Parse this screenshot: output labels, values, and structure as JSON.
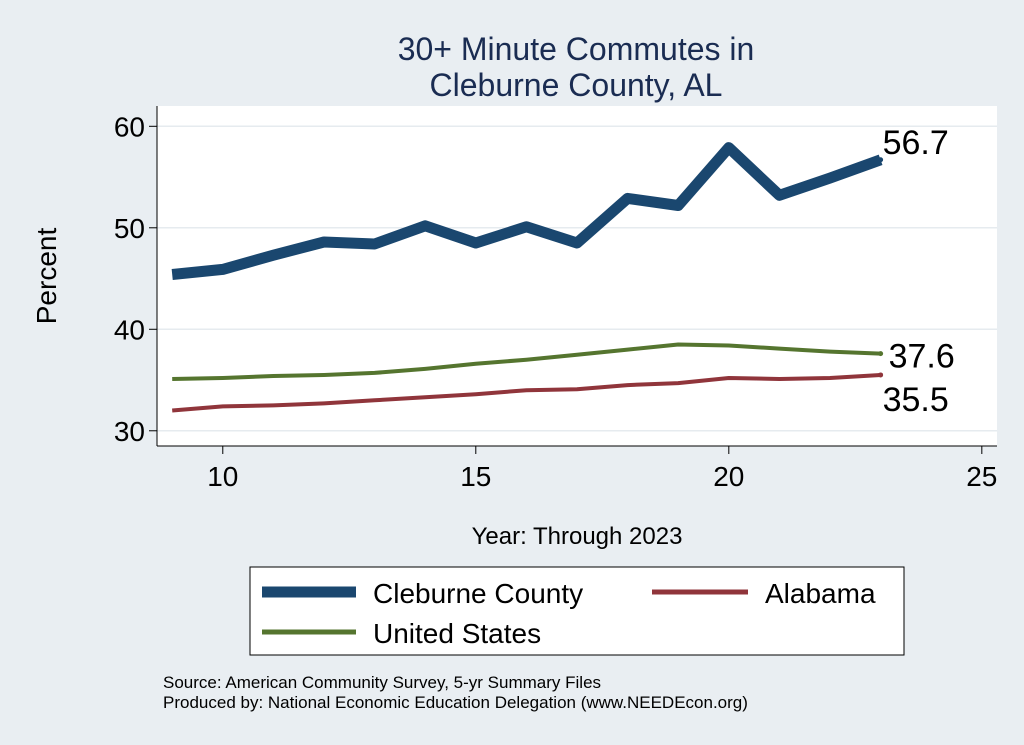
{
  "chart_data": {
    "type": "line",
    "title": [
      "30+ Minute Commutes in",
      "Cleburne County, AL"
    ],
    "xlabel": "Year: Through 2023",
    "ylabel": "Percent",
    "xlim": [
      8.7,
      25.3
    ],
    "ylim": [
      28.5,
      62
    ],
    "xticks": [
      10,
      15,
      20,
      25
    ],
    "yticks": [
      30,
      40,
      50,
      60
    ],
    "grid": true,
    "legend_position": "bottom",
    "series": [
      {
        "name": "Cleburne County",
        "color": "#1a476f",
        "width": "thick",
        "x": [
          9,
          10,
          11,
          12,
          13,
          14,
          15,
          16,
          17,
          18,
          19,
          20,
          21,
          22,
          23
        ],
        "values": [
          45.4,
          45.9,
          47.3,
          48.6,
          48.4,
          50.2,
          48.5,
          50.1,
          48.5,
          52.9,
          52.2,
          57.9,
          53.2,
          54.9,
          56.7
        ],
        "end_label": "56.7"
      },
      {
        "name": "Alabama",
        "color": "#90353b",
        "width": "medium",
        "x": [
          9,
          10,
          11,
          12,
          13,
          14,
          15,
          16,
          17,
          18,
          19,
          20,
          21,
          22,
          23
        ],
        "values": [
          32.0,
          32.4,
          32.5,
          32.7,
          33.0,
          33.3,
          33.6,
          34.0,
          34.1,
          34.5,
          34.7,
          35.2,
          35.1,
          35.2,
          35.5
        ],
        "end_label": "35.5"
      },
      {
        "name": "United States",
        "color": "#55752f",
        "width": "medium",
        "x": [
          9,
          10,
          11,
          12,
          13,
          14,
          15,
          16,
          17,
          18,
          19,
          20,
          21,
          22,
          23
        ],
        "values": [
          35.1,
          35.2,
          35.4,
          35.5,
          35.7,
          36.1,
          36.6,
          37.0,
          37.5,
          38.0,
          38.5,
          38.4,
          38.1,
          37.8,
          37.6
        ],
        "end_label": "37.6"
      }
    ],
    "legend": [
      {
        "series": "Cleburne County"
      },
      {
        "series": "Alabama"
      },
      {
        "series": "United States"
      }
    ],
    "notes": [
      "Source: American Community Survey, 5-yr Summary Files",
      "Produced by: National Economic Education Delegation (www.NEEDEcon.org)"
    ]
  }
}
